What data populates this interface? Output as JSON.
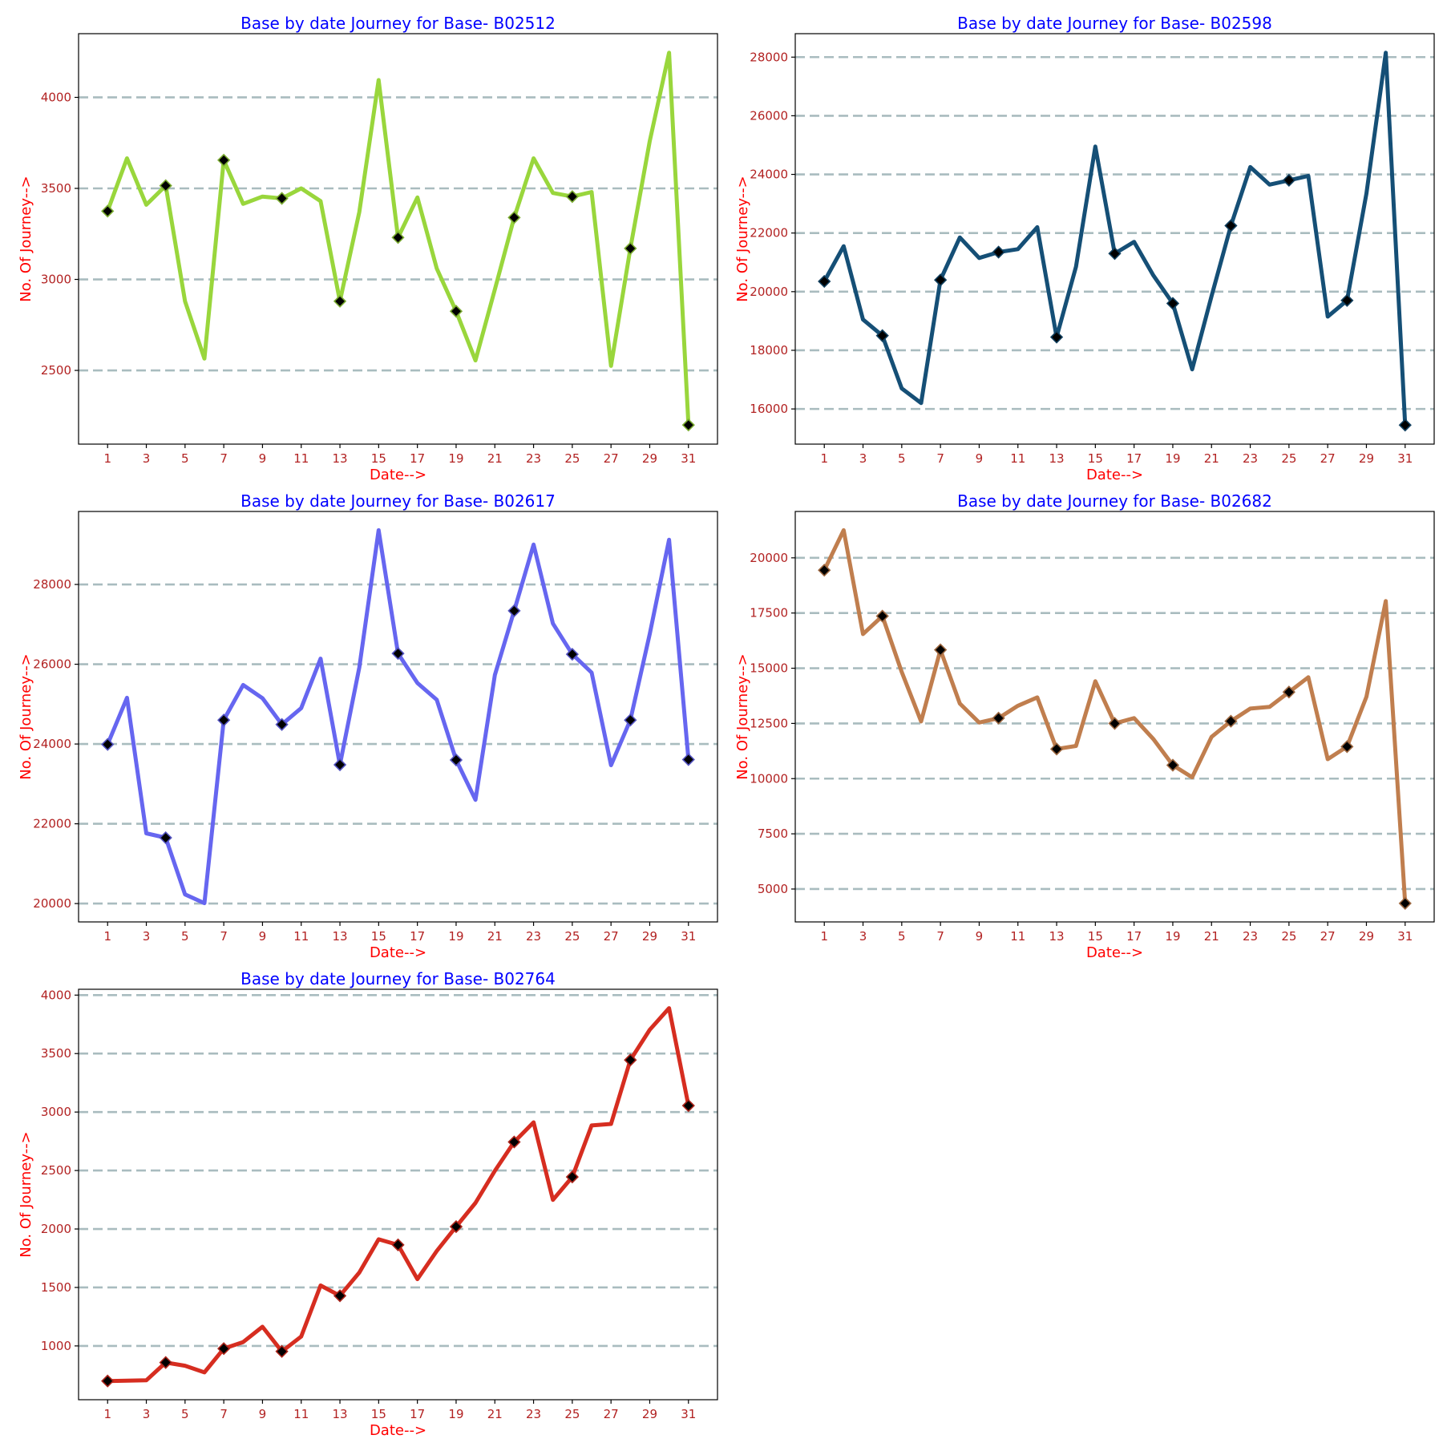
{
  "chart_data": [
    {
      "type": "line",
      "title": "Base by date Journey for Base- B02512",
      "xlabel": "Date-->",
      "ylabel": "No. Of Journey-->",
      "color": "#99d63c",
      "x": [
        1,
        2,
        3,
        4,
        5,
        6,
        7,
        8,
        9,
        10,
        11,
        12,
        13,
        14,
        15,
        16,
        17,
        18,
        19,
        20,
        21,
        22,
        23,
        24,
        25,
        26,
        27,
        28,
        29,
        30,
        31
      ],
      "values": [
        3375,
        3665,
        3410,
        3515,
        2880,
        2565,
        3655,
        3415,
        3455,
        3445,
        3500,
        3430,
        2880,
        3370,
        4095,
        3230,
        3450,
        3060,
        2825,
        2555,
        2945,
        3340,
        3665,
        3475,
        3455,
        3480,
        2525,
        3170,
        3760,
        4245,
        2200
      ],
      "marker_x": [
        1,
        4,
        7,
        10,
        13,
        16,
        19,
        22,
        25,
        28,
        31
      ],
      "xticks": [
        1,
        3,
        5,
        7,
        9,
        11,
        13,
        15,
        17,
        19,
        21,
        23,
        25,
        27,
        29,
        31
      ],
      "yticks": [
        2500,
        3000,
        3500,
        4000
      ],
      "ylim": [
        2095,
        4350
      ],
      "xlim": [
        -0.5,
        32.5
      ],
      "grid": "horizontal dashed"
    },
    {
      "type": "line",
      "title": "Base by date Journey for Base- B02598",
      "xlabel": "Date-->",
      "ylabel": "No. Of Journey-->",
      "color": "#154f76",
      "x": [
        1,
        2,
        3,
        4,
        5,
        6,
        7,
        8,
        9,
        10,
        11,
        12,
        13,
        14,
        15,
        16,
        17,
        18,
        19,
        20,
        21,
        22,
        23,
        24,
        25,
        26,
        27,
        28,
        29,
        30,
        31
      ],
      "values": [
        20350,
        21550,
        19050,
        18500,
        16700,
        16200,
        20400,
        21850,
        21150,
        21350,
        21450,
        22200,
        18450,
        20850,
        24950,
        21300,
        21700,
        20550,
        19600,
        17350,
        19850,
        22250,
        24250,
        23650,
        23800,
        23950,
        19150,
        19700,
        23350,
        28150,
        15450
      ],
      "marker_x": [
        1,
        4,
        7,
        10,
        13,
        16,
        19,
        22,
        25,
        28,
        31
      ],
      "xticks": [
        1,
        3,
        5,
        7,
        9,
        11,
        13,
        15,
        17,
        19,
        21,
        23,
        25,
        27,
        29,
        31
      ],
      "yticks": [
        16000,
        18000,
        20000,
        22000,
        24000,
        26000,
        28000
      ],
      "ylim": [
        14800,
        28800
      ],
      "xlim": [
        -0.5,
        32.5
      ],
      "grid": "horizontal dashed"
    },
    {
      "type": "line",
      "title": "Base by date Journey for Base- B02617",
      "xlabel": "Date-->",
      "ylabel": "No. Of Journey-->",
      "color": "#6666f0",
      "x": [
        1,
        2,
        3,
        4,
        5,
        6,
        7,
        8,
        9,
        10,
        11,
        12,
        13,
        14,
        15,
        16,
        17,
        18,
        19,
        20,
        21,
        22,
        23,
        24,
        25,
        26,
        27,
        28,
        29,
        30,
        31
      ],
      "values": [
        23990,
        25160,
        21760,
        21650,
        20230,
        20010,
        24600,
        25480,
        25150,
        24490,
        24900,
        26140,
        23480,
        25920,
        29360,
        26270,
        25530,
        25110,
        23600,
        22600,
        25730,
        27340,
        29000,
        27020,
        26250,
        25790,
        23470,
        24600,
        26760,
        29120,
        23610
      ],
      "marker_x": [
        1,
        4,
        7,
        10,
        13,
        16,
        19,
        22,
        25,
        28,
        31
      ],
      "xticks": [
        1,
        3,
        5,
        7,
        9,
        11,
        13,
        15,
        17,
        19,
        21,
        23,
        25,
        27,
        29,
        31
      ],
      "yticks": [
        20000,
        22000,
        24000,
        26000,
        28000
      ],
      "ylim": [
        19540,
        29830
      ],
      "xlim": [
        -0.5,
        32.5
      ],
      "grid": "horizontal dashed"
    },
    {
      "type": "line",
      "title": "Base by date Journey for Base- B02682",
      "xlabel": "Date-->",
      "ylabel": "No. Of Journey-->",
      "color": "#c07e4e",
      "x": [
        1,
        2,
        3,
        4,
        5,
        6,
        7,
        8,
        9,
        10,
        11,
        12,
        13,
        14,
        15,
        16,
        17,
        18,
        19,
        20,
        21,
        22,
        23,
        24,
        25,
        26,
        27,
        28,
        29,
        30,
        31
      ],
      "values": [
        19440,
        21250,
        16550,
        17360,
        14830,
        12590,
        15830,
        13400,
        12540,
        12740,
        13300,
        13680,
        11340,
        11480,
        14410,
        12500,
        12740,
        11790,
        10610,
        10060,
        11890,
        12600,
        13170,
        13250,
        13920,
        14590,
        10880,
        11450,
        13710,
        18040,
        4350
      ],
      "marker_x": [
        1,
        4,
        7,
        10,
        13,
        16,
        19,
        22,
        25,
        28,
        31
      ],
      "xticks": [
        1,
        3,
        5,
        7,
        9,
        11,
        13,
        15,
        17,
        19,
        21,
        23,
        25,
        27,
        29,
        31
      ],
      "yticks": [
        5000,
        7500,
        10000,
        12500,
        15000,
        17500,
        20000
      ],
      "ylim": [
        3510,
        22100
      ],
      "xlim": [
        -0.5,
        32.5
      ],
      "grid": "horizontal dashed"
    },
    {
      "type": "line",
      "title": "Base by date Journey for Base- B02764",
      "xlabel": "Date-->",
      "ylabel": "No. Of Journey-->",
      "color": "#d62d20",
      "x": [
        1,
        2,
        3,
        4,
        5,
        6,
        7,
        8,
        9,
        10,
        11,
        12,
        13,
        14,
        15,
        16,
        17,
        18,
        19,
        20,
        21,
        22,
        23,
        24,
        25,
        26,
        27,
        28,
        29,
        30,
        31
      ],
      "values": [
        700,
        703,
        706,
        858,
        831,
        774,
        977,
        1033,
        1164,
        953,
        1080,
        1517,
        1429,
        1627,
        1912,
        1864,
        1571,
        1812,
        2020,
        2223,
        2497,
        2744,
        2912,
        2249,
        2445,
        2885,
        2898,
        3445,
        3704,
        3888,
        3055
      ],
      "marker_x": [
        1,
        4,
        7,
        10,
        13,
        16,
        19,
        22,
        25,
        28,
        31
      ],
      "xticks": [
        1,
        3,
        5,
        7,
        9,
        11,
        13,
        15,
        17,
        19,
        21,
        23,
        25,
        27,
        29,
        31
      ],
      "yticks": [
        1000,
        1500,
        2000,
        2500,
        3000,
        3500,
        4000
      ],
      "ylim": [
        540,
        4050
      ],
      "xlim": [
        -0.5,
        32.5
      ],
      "grid": "horizontal dashed"
    }
  ]
}
